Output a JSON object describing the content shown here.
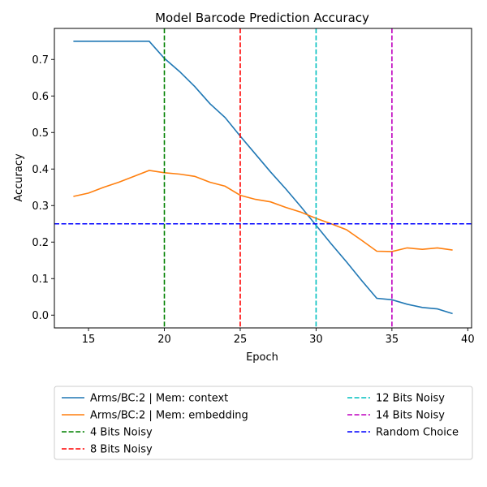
{
  "chart_data": {
    "type": "line",
    "title": "Model Barcode Prediction Accuracy",
    "xlabel": "Epoch",
    "ylabel": "Accuracy",
    "xlim": [
      12.75,
      40.25
    ],
    "ylim": [
      -0.035,
      0.785
    ],
    "xticks": [
      15,
      20,
      25,
      30,
      35,
      40
    ],
    "yticks": [
      0.0,
      0.1,
      0.2,
      0.3,
      0.4,
      0.5,
      0.6,
      0.7
    ],
    "grid": false,
    "legend_position": "below plot, two columns",
    "series": [
      {
        "name": "Arms/BC:2 | Mem: context",
        "color": "#1f77b4",
        "style": "solid",
        "x": [
          14,
          15,
          16,
          17,
          18,
          19,
          20,
          21,
          22,
          23,
          24,
          25,
          26,
          27,
          28,
          29,
          30,
          31,
          32,
          33,
          34,
          35,
          36,
          37,
          38,
          39
        ],
        "y": [
          0.75,
          0.75,
          0.75,
          0.75,
          0.75,
          0.75,
          0.703,
          0.667,
          0.626,
          0.579,
          0.541,
          0.49,
          0.441,
          0.392,
          0.346,
          0.297,
          0.246,
          0.195,
          0.146,
          0.095,
          0.046,
          0.042,
          0.03,
          0.021,
          0.017,
          0.004
        ]
      },
      {
        "name": "Arms/BC:2 | Mem: embedding",
        "color": "#ff7f0e",
        "style": "solid",
        "x": [
          14,
          15,
          16,
          17,
          18,
          19,
          20,
          21,
          22,
          23,
          24,
          25,
          26,
          27,
          28,
          29,
          30,
          31,
          32,
          33,
          34,
          35,
          36,
          37,
          38,
          39
        ],
        "y": [
          0.325,
          0.334,
          0.35,
          0.364,
          0.38,
          0.396,
          0.39,
          0.386,
          0.38,
          0.364,
          0.353,
          0.328,
          0.317,
          0.31,
          0.295,
          0.282,
          0.265,
          0.25,
          0.234,
          0.205,
          0.175,
          0.174,
          0.184,
          0.18,
          0.184,
          0.178
        ]
      }
    ],
    "vlines": [
      {
        "name": "4 Bits Noisy",
        "x": 20,
        "color": "#008000"
      },
      {
        "name": "8 Bits Noisy",
        "x": 25,
        "color": "#ff0000"
      },
      {
        "name": "12 Bits Noisy",
        "x": 30,
        "color": "#00bfbf"
      },
      {
        "name": "14 Bits Noisy",
        "x": 35,
        "color": "#bf00bf"
      }
    ],
    "hlines": [
      {
        "name": "Random Choice",
        "y": 0.25,
        "color": "#0000ff"
      }
    ],
    "legend_order": [
      "Arms/BC:2 | Mem: context",
      "Arms/BC:2 | Mem: embedding",
      "4 Bits Noisy",
      "8 Bits Noisy",
      "12 Bits Noisy",
      "14 Bits Noisy",
      "Random Choice"
    ]
  }
}
